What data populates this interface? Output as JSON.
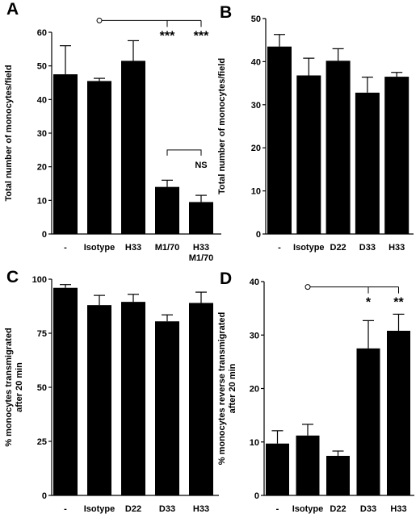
{
  "chart_data": [
    {
      "panel": "A",
      "type": "bar",
      "ylabel": "Total number of monocytes/field",
      "ylim": [
        0,
        60
      ],
      "yticks": [
        0,
        10,
        20,
        30,
        40,
        50,
        60
      ],
      "categories": [
        [
          "-"
        ],
        [
          "Isotype"
        ],
        [
          "H33"
        ],
        [
          "M1/70"
        ],
        [
          "H33",
          "M1/70"
        ]
      ],
      "values": [
        47.5,
        45.5,
        51.5,
        14,
        9.5
      ],
      "errors": [
        8.5,
        0.8,
        6,
        2,
        2
      ],
      "annotations": [
        {
          "type": "ref-bracket",
          "from": 1,
          "to": [
            3,
            4
          ],
          "labels": [
            "***",
            "***"
          ],
          "y": 63.5
        },
        {
          "type": "bracket",
          "from": 3,
          "to": 4,
          "label": "NS",
          "y": 25
        }
      ]
    },
    {
      "panel": "B",
      "type": "bar",
      "ylabel": "Total number of monocytes/field",
      "ylim": [
        0,
        50
      ],
      "yticks": [
        0,
        10,
        20,
        30,
        40,
        50
      ],
      "categories": [
        [
          "-"
        ],
        [
          "Isotype"
        ],
        [
          "D22"
        ],
        [
          "D33"
        ],
        [
          "H33"
        ]
      ],
      "values": [
        43.5,
        36.8,
        40.2,
        32.8,
        36.5
      ],
      "errors": [
        2.8,
        4,
        2.8,
        3.6,
        1
      ]
    },
    {
      "panel": "C",
      "type": "bar",
      "ylabel": "% monocytes transmigrated after 20 min",
      "ylim": [
        0,
        100
      ],
      "yticks": [
        0,
        25,
        50,
        75,
        100
      ],
      "categories": [
        [
          "-"
        ],
        [
          "Isotype"
        ],
        [
          "D22"
        ],
        [
          "D33"
        ],
        [
          "H33"
        ]
      ],
      "values": [
        96,
        88,
        89.5,
        80.5,
        89
      ],
      "errors": [
        1.5,
        4.5,
        3.5,
        3,
        5
      ]
    },
    {
      "panel": "D",
      "type": "bar",
      "ylabel": "% monocytes reverse transmigrated after 20 min",
      "ylim": [
        0,
        40
      ],
      "yticks": [
        0,
        10,
        20,
        30,
        40
      ],
      "categories": [
        [
          "-"
        ],
        [
          "Isotype"
        ],
        [
          "D22"
        ],
        [
          "D33"
        ],
        [
          "H33"
        ]
      ],
      "values": [
        9.7,
        11.2,
        7.4,
        27.5,
        30.8
      ],
      "errors": [
        2.4,
        2.1,
        0.9,
        5.2,
        3.1
      ],
      "annotations": [
        {
          "type": "ref-bracket",
          "from": 1,
          "to": [
            3,
            4
          ],
          "labels": [
            "*",
            "**"
          ],
          "y": 39
        }
      ]
    }
  ]
}
